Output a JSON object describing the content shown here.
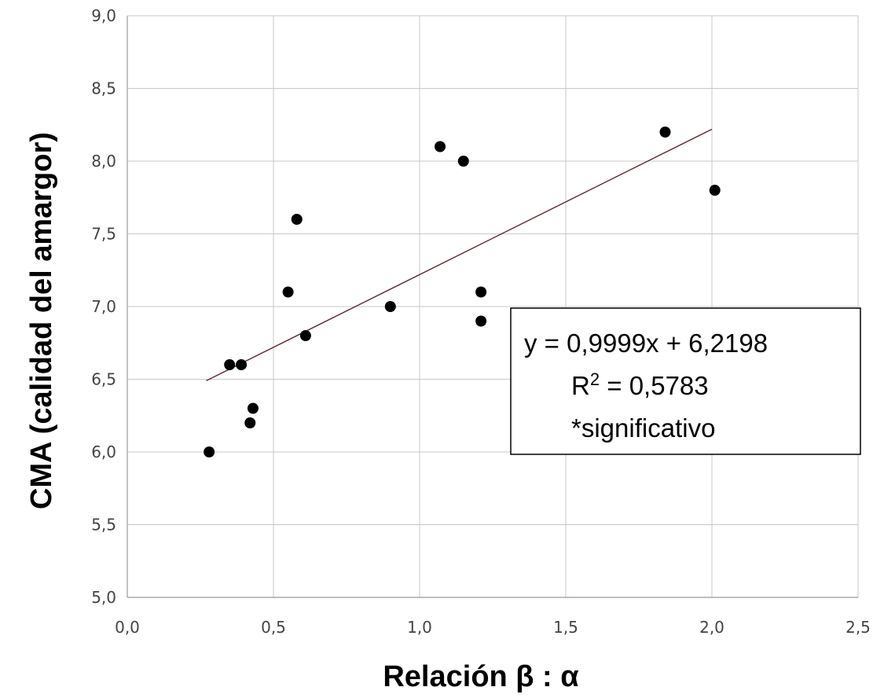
{
  "chart_data": {
    "type": "scatter",
    "title": "",
    "xlabel": "Relación β : α",
    "ylabel": "CMA (calidad del amargor)",
    "xlim": [
      0.0,
      2.5
    ],
    "ylim": [
      5.0,
      9.0
    ],
    "x_ticks": [
      "0,0",
      "0,5",
      "1,0",
      "1,5",
      "2,0",
      "2,5"
    ],
    "y_ticks": [
      "5,0",
      "5,5",
      "6,0",
      "6,5",
      "7,0",
      "7,5",
      "8,0",
      "8,5",
      "9,0"
    ],
    "grid": true,
    "series": [
      {
        "points": [
          {
            "x": 0.28,
            "y": 6.0
          },
          {
            "x": 0.35,
            "y": 6.6
          },
          {
            "x": 0.39,
            "y": 6.6
          },
          {
            "x": 0.42,
            "y": 6.2
          },
          {
            "x": 0.43,
            "y": 6.3
          },
          {
            "x": 0.55,
            "y": 7.1
          },
          {
            "x": 0.58,
            "y": 7.6
          },
          {
            "x": 0.61,
            "y": 6.8
          },
          {
            "x": 0.9,
            "y": 7.0
          },
          {
            "x": 1.07,
            "y": 8.1
          },
          {
            "x": 1.15,
            "y": 8.0
          },
          {
            "x": 1.21,
            "y": 7.1
          },
          {
            "x": 1.21,
            "y": 6.9
          },
          {
            "x": 1.84,
            "y": 8.2
          },
          {
            "x": 2.01,
            "y": 7.8
          }
        ],
        "color": "#000000"
      }
    ],
    "trendline": {
      "slope": 0.9999,
      "intercept": 6.2198,
      "x_range": [
        0.27,
        2.0
      ],
      "color": "#5a2a2a"
    },
    "annotation": {
      "line1": "y = 0,9999x + 6,2198",
      "line2_prefix": "R",
      "line2_sup": "2",
      "line2_suffix": " = 0,5783",
      "line3": "*significativo"
    }
  }
}
